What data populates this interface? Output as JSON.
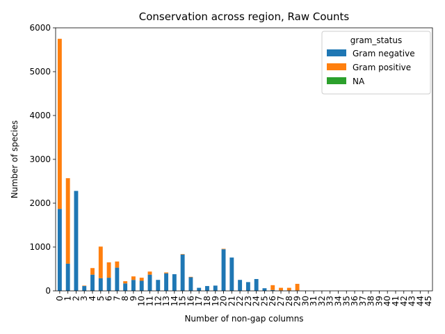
{
  "chart_data": {
    "type": "bar",
    "stacked": true,
    "title": "Conservation across region, Raw Counts",
    "xlabel": "Number of non-gap columns",
    "ylabel": "Number of species",
    "ylim": [
      0,
      6000
    ],
    "yticks": [
      0,
      1000,
      2000,
      3000,
      4000,
      5000,
      6000
    ],
    "categories": [
      "0",
      "1",
      "2",
      "3",
      "4",
      "5",
      "6",
      "7",
      "8",
      "9",
      "10",
      "11",
      "12",
      "13",
      "14",
      "15",
      "16",
      "17",
      "18",
      "19",
      "20",
      "21",
      "22",
      "23",
      "24",
      "25",
      "26",
      "27",
      "28",
      "29",
      "30",
      "31",
      "32",
      "33",
      "34",
      "35",
      "36",
      "37",
      "38",
      "39",
      "40",
      "41",
      "42",
      "43",
      "44",
      "45"
    ],
    "legend": {
      "title": "gram_status",
      "placement": "top-right"
    },
    "series": [
      {
        "name": "Gram negative",
        "color": "#1f77b4",
        "values": [
          1870,
          620,
          2280,
          110,
          370,
          290,
          300,
          530,
          170,
          250,
          230,
          370,
          250,
          400,
          380,
          830,
          310,
          70,
          110,
          120,
          950,
          760,
          250,
          200,
          270,
          60,
          20,
          10,
          10,
          10,
          0,
          0,
          0,
          0,
          0,
          0,
          0,
          0,
          0,
          0,
          0,
          0,
          0,
          0,
          0,
          0
        ]
      },
      {
        "name": "Gram positive",
        "color": "#ff7f0e",
        "values": [
          3880,
          1950,
          0,
          10,
          150,
          720,
          350,
          140,
          50,
          80,
          70,
          70,
          0,
          20,
          0,
          10,
          10,
          0,
          0,
          0,
          10,
          0,
          0,
          0,
          0,
          0,
          110,
          60,
          60,
          150,
          0,
          0,
          0,
          0,
          0,
          0,
          0,
          0,
          0,
          0,
          0,
          0,
          0,
          0,
          0,
          0
        ]
      },
      {
        "name": "NA",
        "color": "#2ca02c",
        "values": [
          0,
          0,
          0,
          0,
          0,
          0,
          0,
          0,
          0,
          0,
          0,
          0,
          0,
          0,
          0,
          0,
          0,
          0,
          0,
          0,
          0,
          0,
          0,
          0,
          0,
          0,
          0,
          0,
          0,
          0,
          0,
          0,
          0,
          0,
          0,
          0,
          0,
          0,
          0,
          0,
          0,
          0,
          0,
          0,
          0,
          0
        ]
      }
    ]
  }
}
